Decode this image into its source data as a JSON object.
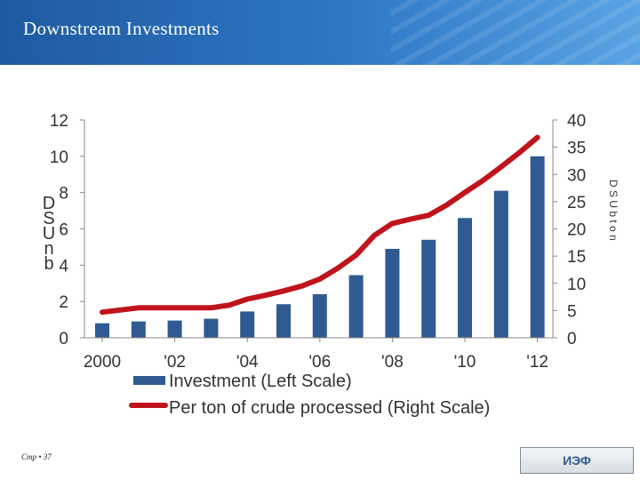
{
  "header": {
    "title": "Downstream Investments"
  },
  "footer": {
    "page": "Стр • 37",
    "logo_text": "ИЭФ"
  },
  "colors": {
    "bar": "#2f5b92",
    "line": "#c0141c",
    "axis": "#888888",
    "header": "#2e78c6"
  },
  "chart_data": {
    "type": "bar",
    "categories": [
      "2000",
      "",
      "'02",
      "",
      "'04",
      "",
      "'06",
      "",
      "'08",
      "",
      "'10",
      "",
      "'12"
    ],
    "x_tick_labels": [
      "2000",
      "'02",
      "'04",
      "'06",
      "'08",
      "'10",
      "'12"
    ],
    "series": [
      {
        "name": "Investment (Left Scale)",
        "type": "bar",
        "axis": "left",
        "values": [
          0.8,
          0.9,
          0.95,
          1.05,
          1.45,
          1.85,
          2.4,
          3.45,
          4.9,
          5.4,
          6.6,
          8.1,
          10.0
        ]
      },
      {
        "name": "Per ton of crude processed (Right Scale)",
        "type": "line",
        "axis": "right",
        "x": [
          2000,
          2001,
          2002,
          2003,
          2003.5,
          2004,
          2004.5,
          2005,
          2005.5,
          2006,
          2006.5,
          2007,
          2007.5,
          2008,
          2008.5,
          2009,
          2009.5,
          2010,
          2010.5,
          2011,
          2011.5,
          2012
        ],
        "values": [
          4.7,
          5.5,
          5.5,
          5.5,
          6.0,
          7.1,
          7.8,
          8.6,
          9.5,
          10.8,
          12.8,
          15.2,
          18.8,
          21.0,
          21.8,
          22.5,
          24.4,
          26.7,
          28.9,
          31.4,
          34.0,
          36.8
        ]
      }
    ],
    "ylabel_left": "D S U n b",
    "ylabel_right": "D S U b t o n",
    "ylim_left": [
      0,
      12
    ],
    "yticks_left": [
      "0",
      "2",
      "4",
      "6",
      "8",
      "10",
      "12"
    ],
    "ylim_right": [
      0,
      40
    ],
    "yticks_right": [
      "0",
      "5",
      "10",
      "15",
      "20",
      "25",
      "30",
      "35",
      "40"
    ],
    "legend_placement": "bottom",
    "grid": false
  }
}
